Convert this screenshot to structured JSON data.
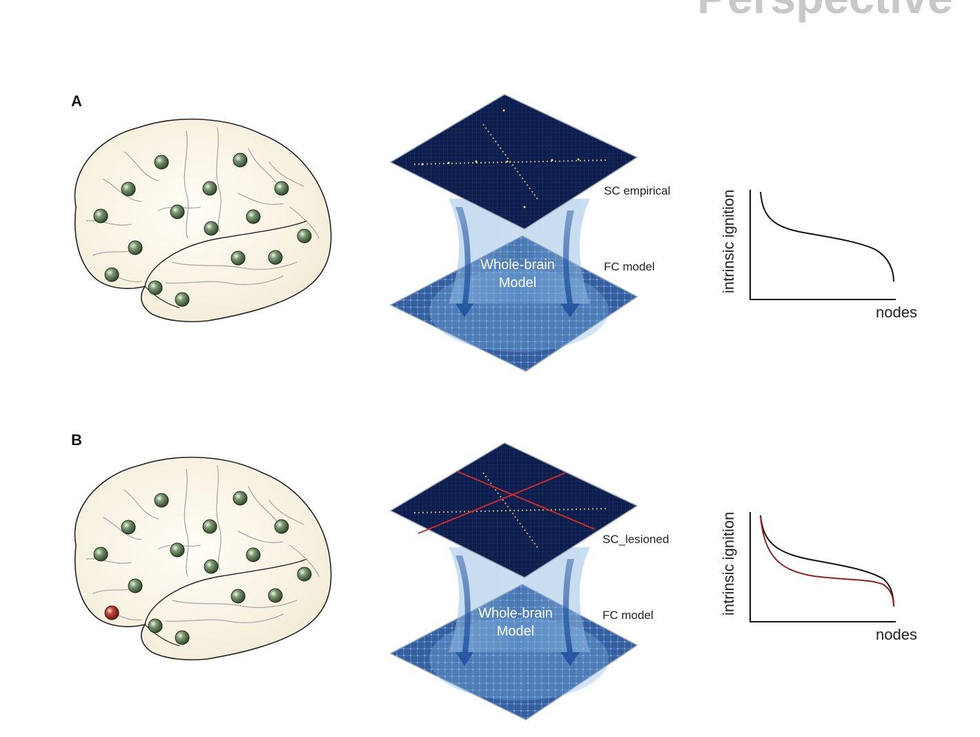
{
  "header": {
    "partial_word": "Perspective"
  },
  "panels": [
    {
      "letter": "A",
      "sc_label": "SC empirical",
      "fc_label": "FC model",
      "model_line1": "Whole-brain",
      "model_line2": "Model",
      "plot": {
        "ylabel": "intrinsic ignition",
        "xlabel": "nodes"
      },
      "lesion_node": false,
      "lesion_lines": false,
      "curves": [
        "#111111"
      ]
    },
    {
      "letter": "B",
      "sc_label": "SC_lesioned",
      "fc_label": "FC model",
      "model_line1": "Whole-brain",
      "model_line2": "Model",
      "plot": {
        "ylabel": "intrinsic ignition",
        "xlabel": "nodes"
      },
      "lesion_node": true,
      "lesion_lines": true,
      "curves": [
        "#111111",
        "#9e1b1b"
      ]
    }
  ],
  "colors": {
    "brain_fill": "#fbf6ea",
    "node_green": "#5d7a55",
    "node_red": "#b03a30",
    "matrix_dark": "#0d1d4a",
    "fc_blue": "#3d6fb0",
    "lesion_line": "#d22a2a"
  }
}
